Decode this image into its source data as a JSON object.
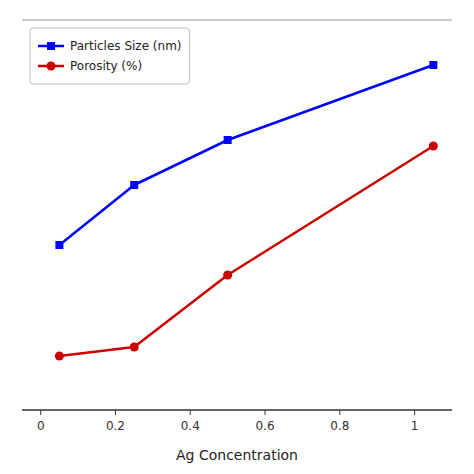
{
  "chart_data": {
    "type": "line",
    "x_label": "Ag Concentration",
    "x": [
      0.05,
      0.25,
      0.5,
      1.05
    ],
    "series": [
      {
        "name": "Particles Size (nm)",
        "color": "#0000ff",
        "marker": "square",
        "values": [
          55,
          75,
          90,
          115
        ]
      },
      {
        "name": "Porosity (%)",
        "color": "#cc0000",
        "marker": "circle",
        "values": [
          18,
          21,
          45,
          88
        ]
      }
    ],
    "xlim": [
      -0.05,
      1.1
    ],
    "xticks": [
      0,
      0.2,
      0.4,
      0.6,
      0.8,
      1
    ],
    "ylim": [
      0,
      130
    ],
    "tick_labels": "x",
    "grid": false,
    "legend": "upper left"
  }
}
